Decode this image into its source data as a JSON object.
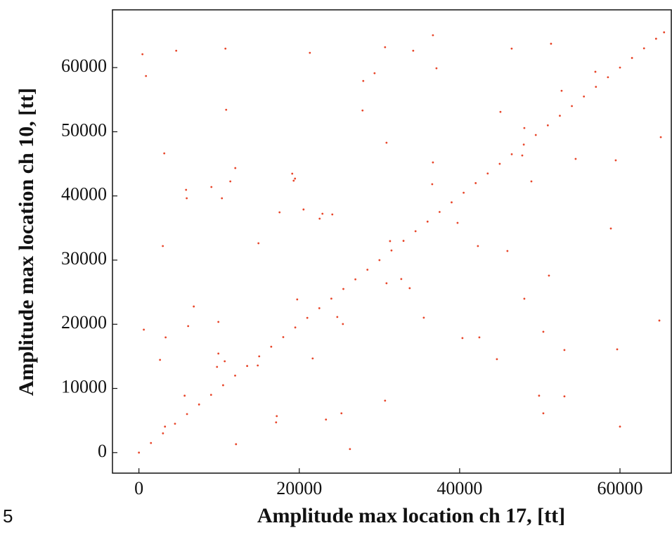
{
  "chart_data": {
    "type": "scatter",
    "xlabel": "Amplitude max location ch 17, [tt]",
    "ylabel": "Amplitude max location ch 10, [tt]",
    "annotation": "5",
    "color": "#e8462a",
    "xlim": [
      -3300,
      66400
    ],
    "ylim": [
      -3200,
      69000
    ],
    "xticks": [
      0,
      20000,
      40000,
      60000
    ],
    "yticks": [
      0,
      10000,
      20000,
      30000,
      40000,
      50000,
      60000
    ],
    "x": [
      440,
      880,
      610,
      3160,
      2980,
      3330,
      2630,
      3250,
      4650,
      5880,
      5960,
      6140,
      6840,
      5700,
      9040,
      9910,
      9740,
      9910,
      10350,
      10700,
      10790,
      10880,
      11400,
      12020,
      12110,
      14820,
      17110,
      17190,
      14910,
      17540,
      19120,
      19470,
      19300,
      19740,
      20530,
      21320,
      21670,
      22540,
      22890,
      24120,
      23330,
      24740,
      25440,
      25260,
      26320,
      27890,
      27980,
      29390,
      30700,
      30880,
      30880,
      30700,
      31320,
      32720,
      33770,
      34210,
      35530,
      36670,
      36670,
      36580,
      37110,
      39740,
      40350,
      42280,
      42460,
      44650,
      45090,
      45960,
      46490,
      47810,
      48070,
      48070,
      48950,
      49910,
      50440,
      50440,
      51140,
      51400,
      52720,
      53070,
      53070,
      54470,
      56930,
      58860,
      59470,
      59650,
      60000,
      65090,
      64910,
      0,
      1500,
      3000,
      4500,
      6000,
      7500,
      9000,
      10500,
      12000,
      13500,
      15000,
      16500,
      18000,
      19500,
      21000,
      22500,
      24000,
      25500,
      27000,
      28500,
      30000,
      31500,
      33000,
      34500,
      36000,
      37500,
      39000,
      40500,
      42000,
      43500,
      45000,
      46500,
      48000,
      49500,
      51000,
      52500,
      54000,
      55500,
      57000,
      58500,
      60000,
      61500,
      63000,
      64500,
      65500
    ],
    "values": [
      62080,
      58690,
      19160,
      46640,
      32190,
      17960,
      14450,
      4050,
      62630,
      40950,
      39640,
      19710,
      22770,
      8870,
      41390,
      20370,
      13360,
      15440,
      39640,
      14230,
      62960,
      53430,
      42270,
      44340,
      1310,
      13580,
      4710,
      5690,
      32630,
      37450,
      43470,
      42700,
      42380,
      23870,
      37890,
      62300,
      14670,
      36460,
      37230,
      37120,
      5150,
      21130,
      20040,
      6130,
      550,
      53320,
      57920,
      59130,
      63180,
      48290,
      26390,
      8100,
      32960,
      27050,
      25620,
      62630,
      21020,
      65040,
      45220,
      41830,
      59890,
      35800,
      17850,
      32190,
      17960,
      14560,
      53100,
      31420,
      62960,
      46310,
      50580,
      23980,
      42270,
      8870,
      6130,
      18830,
      27590,
      63720,
      56390,
      15990,
      8760,
      45770,
      59350,
      34930,
      45550,
      16100,
      4050,
      49160,
      20580,
      0,
      1500,
      3000,
      4500,
      6000,
      7500,
      9000,
      10500,
      12000,
      13500,
      15000,
      16500,
      18000,
      19500,
      21000,
      22500,
      24000,
      25500,
      27000,
      28500,
      30000,
      31500,
      33000,
      34500,
      36000,
      37500,
      39000,
      40500,
      42000,
      43500,
      45000,
      46500,
      48000,
      49500,
      51000,
      52500,
      54000,
      55500,
      57000,
      58500,
      60000,
      61500,
      63000,
      64500,
      65500
    ]
  }
}
